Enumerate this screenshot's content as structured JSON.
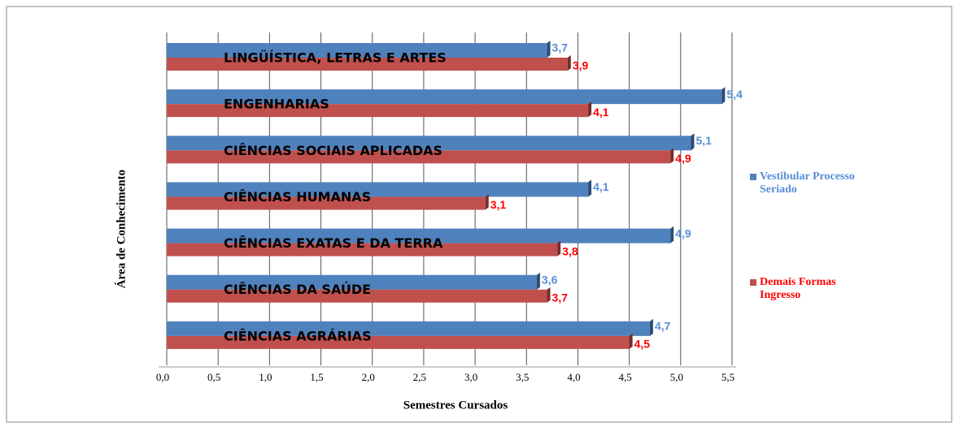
{
  "chart_data": {
    "type": "bar",
    "orientation": "horizontal",
    "xlabel": "Semestres Cursados",
    "ylabel": "Área de Conhecimento",
    "categories": [
      "LINGÜÍSTICA, LETRAS E ARTES",
      "ENGENHARIAS",
      "CIÊNCIAS SOCIAIS APLICADAS",
      "CIÊNCIAS HUMANAS",
      "CIÊNCIAS EXATAS E DA TERRA",
      "CIÊNCIAS DA SAÚDE",
      "CIÊNCIAS AGRÁRIAS"
    ],
    "series": [
      {
        "name": "Vestibular Processo Seriado",
        "color": "#4f81bd",
        "label_color": "#558ed5",
        "values": [
          3.7,
          5.4,
          5.1,
          4.1,
          4.9,
          3.6,
          4.7
        ],
        "value_labels": [
          "3,7",
          "5,4",
          "5,1",
          "4,1",
          "4,9",
          "3,6",
          "4,7"
        ]
      },
      {
        "name": "Demais Formas Ingresso",
        "color": "#c0504d",
        "label_color": "#ff0000",
        "values": [
          3.9,
          4.1,
          4.9,
          3.1,
          3.8,
          3.7,
          4.5
        ],
        "value_labels": [
          "3,9",
          "4,1",
          "4,9",
          "3,1",
          "3,8",
          "3,7",
          "4,5"
        ]
      }
    ],
    "xlim": [
      0,
      5.5
    ],
    "xticks": [
      {
        "value": 0,
        "label": "0,0"
      },
      {
        "value": 0.5,
        "label": "0,5"
      },
      {
        "value": 1,
        "label": "1,0"
      },
      {
        "value": 1.5,
        "label": "1,5"
      },
      {
        "value": 2,
        "label": "2,0"
      },
      {
        "value": 2.5,
        "label": "2,5"
      },
      {
        "value": 3,
        "label": "3,0"
      },
      {
        "value": 3.5,
        "label": "3,5"
      },
      {
        "value": 4,
        "label": "4,0"
      },
      {
        "value": 4.5,
        "label": "4,5"
      },
      {
        "value": 5,
        "label": "5,0"
      },
      {
        "value": 5.5,
        "label": "5,5"
      }
    ],
    "grid": true,
    "legend": "right"
  }
}
